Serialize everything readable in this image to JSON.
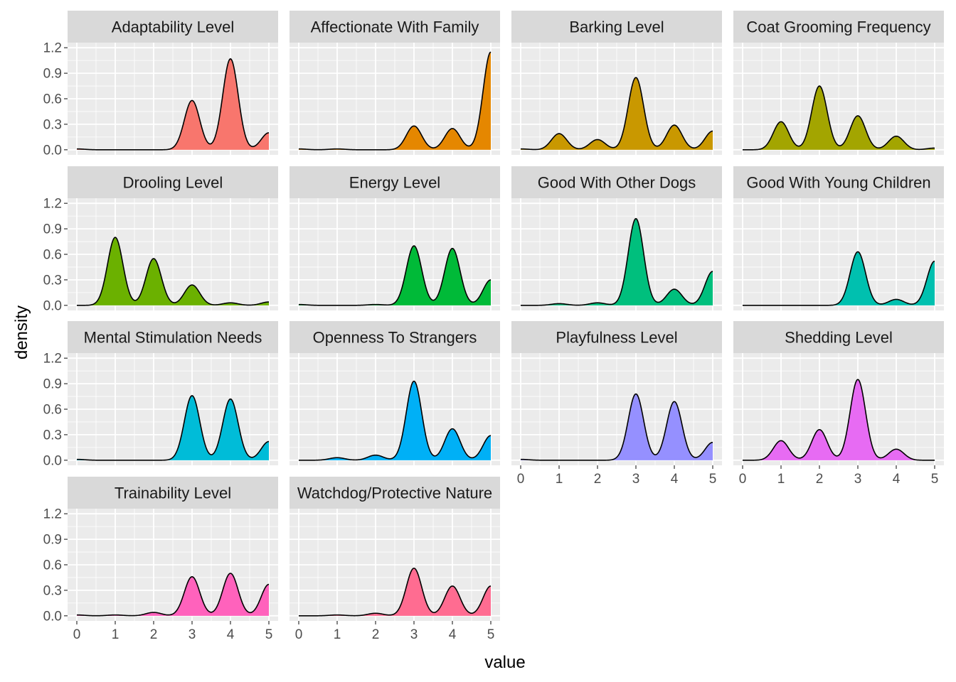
{
  "chart_data": {
    "type": "area",
    "subtype": "faceted density",
    "xlabel": "value",
    "ylabel": "density",
    "xlim": [
      0,
      5
    ],
    "ylim": [
      0,
      1.2
    ],
    "x_ticks": [
      "0",
      "1",
      "2",
      "3",
      "4",
      "5"
    ],
    "y_ticks": [
      "0.0",
      "0.3",
      "0.6",
      "0.9",
      "1.2"
    ],
    "grid": true,
    "legend": "none",
    "layout": {
      "columns": 4,
      "rows": 4
    },
    "x_values": [
      0,
      1,
      2,
      3,
      4,
      5
    ],
    "panels": [
      {
        "name": "Adaptability Level",
        "color": "#F8766D",
        "densities": [
          0.01,
          0.0,
          0.0,
          0.58,
          1.07,
          0.2
        ]
      },
      {
        "name": "Affectionate With Family",
        "color": "#E58700",
        "densities": [
          0.01,
          0.01,
          0.0,
          0.28,
          0.25,
          1.15
        ]
      },
      {
        "name": "Barking Level",
        "color": "#C99800",
        "densities": [
          0.01,
          0.19,
          0.12,
          0.85,
          0.29,
          0.22
        ]
      },
      {
        "name": "Coat Grooming Frequency",
        "color": "#A3A500",
        "densities": [
          0.0,
          0.33,
          0.75,
          0.4,
          0.16,
          0.02
        ]
      },
      {
        "name": "Drooling Level",
        "color": "#6BB100",
        "densities": [
          0.0,
          0.8,
          0.55,
          0.24,
          0.03,
          0.04
        ]
      },
      {
        "name": "Energy Level",
        "color": "#00BA38",
        "densities": [
          0.01,
          0.0,
          0.01,
          0.7,
          0.67,
          0.3
        ]
      },
      {
        "name": "Good With Other Dogs",
        "color": "#00BF7D",
        "densities": [
          0.0,
          0.02,
          0.03,
          1.02,
          0.19,
          0.4
        ]
      },
      {
        "name": "Good With Young Children",
        "color": "#00C0AF",
        "densities": [
          0.0,
          0.0,
          0.0,
          0.63,
          0.07,
          0.52
        ]
      },
      {
        "name": "Mental Stimulation Needs",
        "color": "#00BCD8",
        "densities": [
          0.01,
          0.0,
          0.0,
          0.76,
          0.72,
          0.22
        ]
      },
      {
        "name": "Openness To Strangers",
        "color": "#00B0F6",
        "densities": [
          0.0,
          0.03,
          0.06,
          0.93,
          0.37,
          0.29
        ]
      },
      {
        "name": "Playfulness Level",
        "color": "#9590FF",
        "densities": [
          0.01,
          0.0,
          0.0,
          0.78,
          0.69,
          0.21
        ]
      },
      {
        "name": "Shedding Level",
        "color": "#E76BF3",
        "densities": [
          0.0,
          0.23,
          0.36,
          0.95,
          0.13,
          0.0
        ]
      },
      {
        "name": "Trainability Level",
        "color": "#FF62BC",
        "densities": [
          0.01,
          0.01,
          0.04,
          0.46,
          0.5,
          0.37
        ]
      },
      {
        "name": "Watchdog/Protective Nature",
        "color": "#FF6C91",
        "densities": [
          0.0,
          0.01,
          0.03,
          0.56,
          0.35,
          0.35
        ]
      }
    ]
  }
}
